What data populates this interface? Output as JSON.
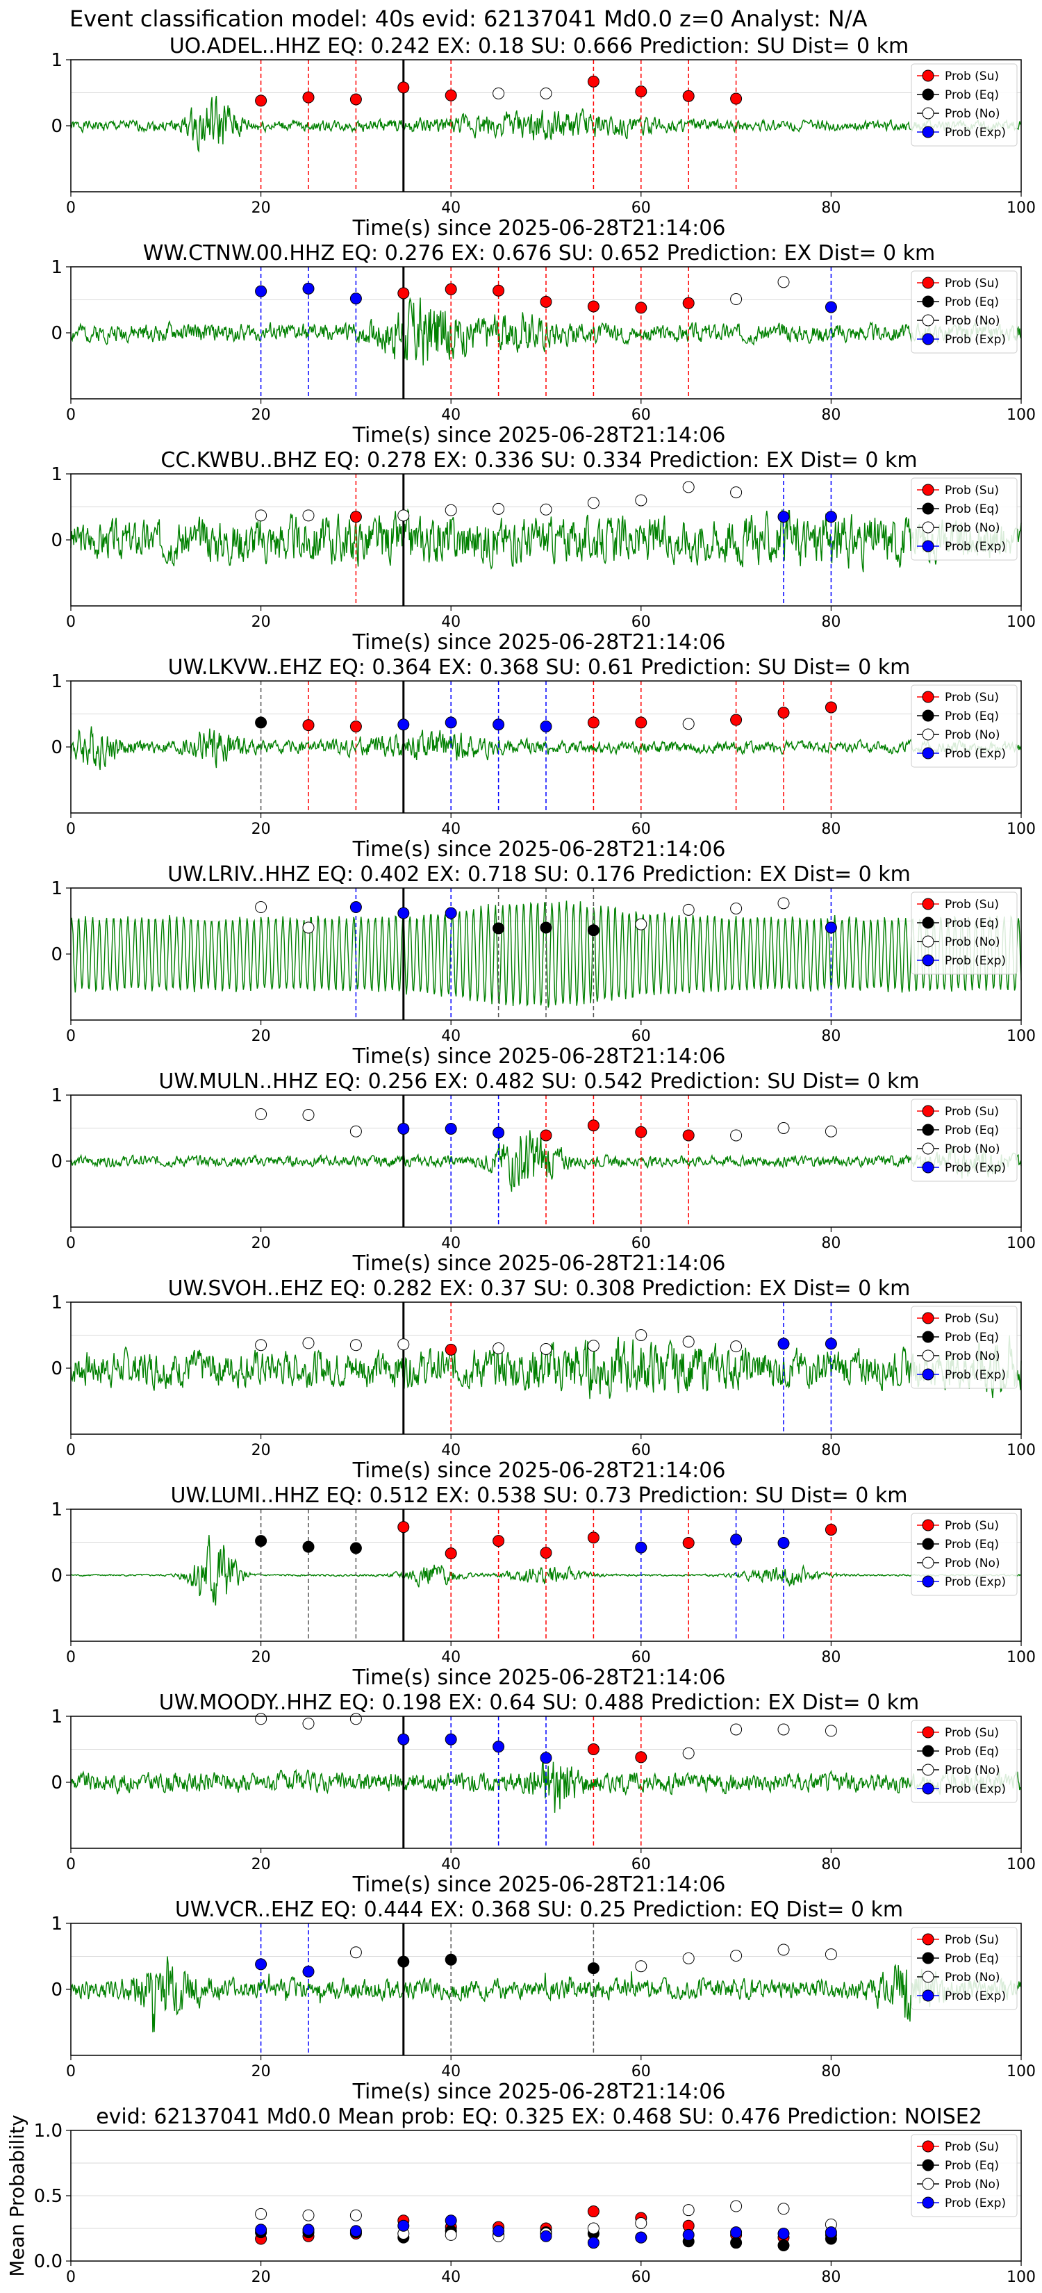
{
  "figure": {
    "suptitle": "Event classification model: 40s evid: 62137041 Md0.0 z=0 Analyst: N/A",
    "xlabel": "Time(s) since 2025-06-28T21:14:06",
    "xticks": [
      0,
      20,
      40,
      60,
      80,
      100
    ],
    "xlim": [
      0,
      100
    ],
    "event_time_line": 35,
    "legend": [
      "Prob (Su)",
      "Prob (Eq)",
      "Prob (No)",
      "Prob (Exp)"
    ]
  },
  "colors": {
    "waveform": "#008000",
    "su": "#ff0000",
    "eq": "#000000",
    "no": "#ffffff",
    "exp": "#0000ff",
    "grid": "#d9d9d9"
  },
  "chart_data": [
    {
      "type": "line",
      "title": "UO.ADEL..HHZ   EQ: 0.242  EX: 0.18  SU: 0.666   Prediction: SU    Dist= 0 km",
      "yticks": [
        0,
        1
      ],
      "ylim": [
        -1,
        1
      ],
      "points": [
        {
          "t": 20,
          "cls": "su",
          "p": 0.38
        },
        {
          "t": 25,
          "cls": "su",
          "p": 0.43
        },
        {
          "t": 30,
          "cls": "su",
          "p": 0.4
        },
        {
          "t": 35,
          "cls": "su",
          "p": 0.58
        },
        {
          "t": 40,
          "cls": "su",
          "p": 0.46
        },
        {
          "t": 45,
          "cls": "no",
          "p": 0.49
        },
        {
          "t": 50,
          "cls": "no",
          "p": 0.49
        },
        {
          "t": 55,
          "cls": "su",
          "p": 0.67
        },
        {
          "t": 60,
          "cls": "su",
          "p": 0.52
        },
        {
          "t": 65,
          "cls": "su",
          "p": 0.45
        },
        {
          "t": 70,
          "cls": "su",
          "p": 0.41
        }
      ],
      "wave": {
        "base": 0.12,
        "seed": 1,
        "bursts": [
          {
            "c": 15,
            "w": 2.5,
            "a": 0.55
          },
          {
            "c": 50,
            "w": 10,
            "a": 0.22
          }
        ]
      }
    },
    {
      "type": "line",
      "title": "WW.CTNW.00.HHZ   EQ: 0.276  EX: 0.676  SU: 0.652   Prediction: EX    Dist= 0 km",
      "yticks": [
        0,
        1
      ],
      "ylim": [
        -1,
        1
      ],
      "points": [
        {
          "t": 20,
          "cls": "exp",
          "p": 0.63
        },
        {
          "t": 25,
          "cls": "exp",
          "p": 0.67
        },
        {
          "t": 30,
          "cls": "exp",
          "p": 0.52
        },
        {
          "t": 35,
          "cls": "su",
          "p": 0.6
        },
        {
          "t": 40,
          "cls": "su",
          "p": 0.66
        },
        {
          "t": 45,
          "cls": "su",
          "p": 0.64
        },
        {
          "t": 50,
          "cls": "su",
          "p": 0.47
        },
        {
          "t": 55,
          "cls": "su",
          "p": 0.4
        },
        {
          "t": 60,
          "cls": "su",
          "p": 0.38
        },
        {
          "t": 65,
          "cls": "su",
          "p": 0.45
        },
        {
          "t": 70,
          "cls": "no",
          "p": 0.51
        },
        {
          "t": 75,
          "cls": "no",
          "p": 0.77
        },
        {
          "t": 80,
          "cls": "exp",
          "p": 0.39
        }
      ],
      "wave": {
        "base": 0.2,
        "seed": 2,
        "bursts": [
          {
            "c": 37,
            "w": 4,
            "a": 0.65
          },
          {
            "c": 47,
            "w": 5,
            "a": 0.25
          }
        ]
      }
    },
    {
      "type": "line",
      "title": "CC.KWBU..BHZ   EQ: 0.278  EX: 0.336  SU: 0.334   Prediction: EX    Dist= 0 km",
      "yticks": [
        0,
        1
      ],
      "ylim": [
        -1,
        1
      ],
      "points": [
        {
          "t": 20,
          "cls": "no",
          "p": 0.37
        },
        {
          "t": 25,
          "cls": "no",
          "p": 0.37
        },
        {
          "t": 30,
          "cls": "su",
          "p": 0.35
        },
        {
          "t": 35,
          "cls": "no",
          "p": 0.37
        },
        {
          "t": 40,
          "cls": "no",
          "p": 0.45
        },
        {
          "t": 45,
          "cls": "no",
          "p": 0.47
        },
        {
          "t": 50,
          "cls": "no",
          "p": 0.46
        },
        {
          "t": 55,
          "cls": "no",
          "p": 0.56
        },
        {
          "t": 60,
          "cls": "no",
          "p": 0.6
        },
        {
          "t": 65,
          "cls": "no",
          "p": 0.8
        },
        {
          "t": 70,
          "cls": "no",
          "p": 0.72
        },
        {
          "t": 75,
          "cls": "exp",
          "p": 0.35
        },
        {
          "t": 80,
          "cls": "exp",
          "p": 0.35
        }
      ],
      "wave": {
        "base": 0.35,
        "seed": 3,
        "bursts": [
          {
            "c": 35,
            "w": 30,
            "a": 0.2
          },
          {
            "c": 80,
            "w": 15,
            "a": 0.2
          }
        ]
      }
    },
    {
      "type": "line",
      "title": "UW.LKVW..EHZ   EQ: 0.364  EX: 0.368  SU: 0.61   Prediction: SU    Dist= 0 km",
      "yticks": [
        0,
        1
      ],
      "ylim": [
        -1,
        1
      ],
      "points": [
        {
          "t": 20,
          "cls": "eq",
          "p": 0.37
        },
        {
          "t": 25,
          "cls": "su",
          "p": 0.33
        },
        {
          "t": 30,
          "cls": "su",
          "p": 0.31
        },
        {
          "t": 35,
          "cls": "exp",
          "p": 0.34
        },
        {
          "t": 40,
          "cls": "exp",
          "p": 0.37
        },
        {
          "t": 45,
          "cls": "exp",
          "p": 0.34
        },
        {
          "t": 50,
          "cls": "exp",
          "p": 0.31
        },
        {
          "t": 55,
          "cls": "su",
          "p": 0.37
        },
        {
          "t": 60,
          "cls": "su",
          "p": 0.37
        },
        {
          "t": 65,
          "cls": "no",
          "p": 0.35
        },
        {
          "t": 70,
          "cls": "su",
          "p": 0.41
        },
        {
          "t": 75,
          "cls": "su",
          "p": 0.52
        },
        {
          "t": 80,
          "cls": "su",
          "p": 0.6
        }
      ],
      "wave": {
        "base": 0.13,
        "seed": 4,
        "bursts": [
          {
            "c": 2,
            "w": 3,
            "a": 0.35
          },
          {
            "c": 15,
            "w": 3,
            "a": 0.3
          },
          {
            "c": 38,
            "w": 8,
            "a": 0.2
          }
        ]
      }
    },
    {
      "type": "line",
      "title": "UW.LRIV..HHZ   EQ: 0.402  EX: 0.718  SU: 0.176   Prediction: EX    Dist= 0 km",
      "yticks": [
        0,
        1
      ],
      "ylim": [
        -1,
        1
      ],
      "points": [
        {
          "t": 20,
          "cls": "no",
          "p": 0.71
        },
        {
          "t": 25,
          "cls": "no",
          "p": 0.4
        },
        {
          "t": 30,
          "cls": "exp",
          "p": 0.71
        },
        {
          "t": 35,
          "cls": "exp",
          "p": 0.62
        },
        {
          "t": 40,
          "cls": "exp",
          "p": 0.62
        },
        {
          "t": 45,
          "cls": "eq",
          "p": 0.39
        },
        {
          "t": 50,
          "cls": "eq",
          "p": 0.4
        },
        {
          "t": 55,
          "cls": "eq",
          "p": 0.36
        },
        {
          "t": 60,
          "cls": "no",
          "p": 0.45
        },
        {
          "t": 65,
          "cls": "no",
          "p": 0.67
        },
        {
          "t": 70,
          "cls": "no",
          "p": 0.69
        },
        {
          "t": 75,
          "cls": "no",
          "p": 0.77
        },
        {
          "t": 80,
          "cls": "exp",
          "p": 0.4
        }
      ],
      "wave": {
        "base": 0.55,
        "seed": 5,
        "smooth": true,
        "bursts": [
          {
            "c": 50,
            "w": 10,
            "a": 0.25
          }
        ]
      }
    },
    {
      "type": "line",
      "title": "UW.MULN..HHZ   EQ: 0.256  EX: 0.482  SU: 0.542   Prediction: SU    Dist= 0 km",
      "yticks": [
        0,
        1
      ],
      "ylim": [
        -1,
        1
      ],
      "points": [
        {
          "t": 20,
          "cls": "no",
          "p": 0.71
        },
        {
          "t": 25,
          "cls": "no",
          "p": 0.7
        },
        {
          "t": 30,
          "cls": "no",
          "p": 0.45
        },
        {
          "t": 35,
          "cls": "exp",
          "p": 0.49
        },
        {
          "t": 40,
          "cls": "exp",
          "p": 0.49
        },
        {
          "t": 45,
          "cls": "exp",
          "p": 0.43
        },
        {
          "t": 50,
          "cls": "su",
          "p": 0.39
        },
        {
          "t": 55,
          "cls": "su",
          "p": 0.54
        },
        {
          "t": 60,
          "cls": "su",
          "p": 0.44
        },
        {
          "t": 65,
          "cls": "su",
          "p": 0.39
        },
        {
          "t": 70,
          "cls": "no",
          "p": 0.39
        },
        {
          "t": 75,
          "cls": "no",
          "p": 0.5
        },
        {
          "t": 80,
          "cls": "no",
          "p": 0.45
        }
      ],
      "wave": {
        "base": 0.12,
        "seed": 6,
        "bursts": [
          {
            "c": 48,
            "w": 3,
            "a": 0.65
          },
          {
            "c": 95,
            "w": 4,
            "a": 0.25
          }
        ]
      }
    },
    {
      "type": "line",
      "title": "UW.SVOH..EHZ   EQ: 0.282  EX: 0.37  SU: 0.308   Prediction: EX    Dist= 0 km",
      "yticks": [
        0,
        1
      ],
      "ylim": [
        -1,
        1
      ],
      "points": [
        {
          "t": 20,
          "cls": "no",
          "p": 0.35
        },
        {
          "t": 25,
          "cls": "no",
          "p": 0.38
        },
        {
          "t": 30,
          "cls": "no",
          "p": 0.35
        },
        {
          "t": 35,
          "cls": "no",
          "p": 0.36
        },
        {
          "t": 40,
          "cls": "su",
          "p": 0.28
        },
        {
          "t": 45,
          "cls": "no",
          "p": 0.3
        },
        {
          "t": 50,
          "cls": "no",
          "p": 0.29
        },
        {
          "t": 55,
          "cls": "no",
          "p": 0.34
        },
        {
          "t": 60,
          "cls": "no",
          "p": 0.5
        },
        {
          "t": 65,
          "cls": "no",
          "p": 0.4
        },
        {
          "t": 70,
          "cls": "no",
          "p": 0.33
        },
        {
          "t": 75,
          "cls": "exp",
          "p": 0.37
        },
        {
          "t": 80,
          "cls": "exp",
          "p": 0.37
        }
      ],
      "wave": {
        "base": 0.4,
        "seed": 7,
        "bursts": [
          {
            "c": 57,
            "w": 10,
            "a": 0.25
          },
          {
            "c": 98,
            "w": 3,
            "a": 0.35
          }
        ]
      }
    },
    {
      "type": "line",
      "title": "UW.LUMI..HHZ   EQ: 0.512  EX: 0.538  SU: 0.73   Prediction: SU    Dist= 0 km",
      "yticks": [
        0,
        1
      ],
      "ylim": [
        -1,
        1
      ],
      "points": [
        {
          "t": 20,
          "cls": "eq",
          "p": 0.52
        },
        {
          "t": 25,
          "cls": "eq",
          "p": 0.43
        },
        {
          "t": 30,
          "cls": "eq",
          "p": 0.41
        },
        {
          "t": 35,
          "cls": "su",
          "p": 0.73
        },
        {
          "t": 40,
          "cls": "su",
          "p": 0.33
        },
        {
          "t": 45,
          "cls": "su",
          "p": 0.52
        },
        {
          "t": 50,
          "cls": "su",
          "p": 0.34
        },
        {
          "t": 55,
          "cls": "su",
          "p": 0.57
        },
        {
          "t": 60,
          "cls": "exp",
          "p": 0.42
        },
        {
          "t": 65,
          "cls": "su",
          "p": 0.49
        },
        {
          "t": 70,
          "cls": "exp",
          "p": 0.54
        },
        {
          "t": 75,
          "cls": "exp",
          "p": 0.49
        },
        {
          "t": 80,
          "cls": "su",
          "p": 0.69
        }
      ],
      "wave": {
        "base": 0.02,
        "seed": 8,
        "bursts": [
          {
            "c": 15,
            "w": 2.2,
            "a": 0.9
          },
          {
            "c": 38,
            "w": 3,
            "a": 0.25
          },
          {
            "c": 50,
            "w": 4,
            "a": 0.2
          },
          {
            "c": 75,
            "w": 4,
            "a": 0.2
          }
        ]
      }
    },
    {
      "type": "line",
      "title": "UW.MOODY..HHZ   EQ: 0.198  EX: 0.64  SU: 0.488   Prediction: EX    Dist= 0 km",
      "yticks": [
        0,
        1
      ],
      "ylim": [
        -1,
        1
      ],
      "points": [
        {
          "t": 20,
          "cls": "no",
          "p": 0.96
        },
        {
          "t": 25,
          "cls": "no",
          "p": 0.89
        },
        {
          "t": 30,
          "cls": "no",
          "p": 0.96
        },
        {
          "t": 35,
          "cls": "exp",
          "p": 0.65
        },
        {
          "t": 40,
          "cls": "exp",
          "p": 0.65
        },
        {
          "t": 45,
          "cls": "exp",
          "p": 0.54
        },
        {
          "t": 50,
          "cls": "exp",
          "p": 0.37
        },
        {
          "t": 55,
          "cls": "su",
          "p": 0.5
        },
        {
          "t": 60,
          "cls": "su",
          "p": 0.38
        },
        {
          "t": 65,
          "cls": "no",
          "p": 0.44
        },
        {
          "t": 70,
          "cls": "no",
          "p": 0.8
        },
        {
          "t": 75,
          "cls": "no",
          "p": 0.8
        },
        {
          "t": 80,
          "cls": "no",
          "p": 0.78
        }
      ],
      "wave": {
        "base": 0.22,
        "seed": 9,
        "bursts": [
          {
            "c": 51,
            "w": 2,
            "a": 0.6
          }
        ]
      }
    },
    {
      "type": "line",
      "title": "UW.VCR..EHZ   EQ: 0.444  EX: 0.368  SU: 0.25   Prediction: EQ    Dist= 0 km",
      "yticks": [
        0,
        1
      ],
      "ylim": [
        -1,
        1
      ],
      "points": [
        {
          "t": 20,
          "cls": "exp",
          "p": 0.38
        },
        {
          "t": 25,
          "cls": "exp",
          "p": 0.27
        },
        {
          "t": 30,
          "cls": "no",
          "p": 0.56
        },
        {
          "t": 35,
          "cls": "eq",
          "p": 0.42
        },
        {
          "t": 40,
          "cls": "eq",
          "p": 0.45
        },
        {
          "t": 55,
          "cls": "eq",
          "p": 0.32
        },
        {
          "t": 60,
          "cls": "no",
          "p": 0.35
        },
        {
          "t": 65,
          "cls": "no",
          "p": 0.47
        },
        {
          "t": 70,
          "cls": "no",
          "p": 0.51
        },
        {
          "t": 75,
          "cls": "no",
          "p": 0.6
        },
        {
          "t": 80,
          "cls": "no",
          "p": 0.53
        }
      ],
      "wave": {
        "base": 0.22,
        "seed": 10,
        "spiky": true,
        "bursts": [
          {
            "c": 10,
            "w": 3,
            "a": 0.5
          },
          {
            "c": 88,
            "w": 3,
            "a": 0.45
          }
        ]
      }
    },
    {
      "type": "scatter",
      "title": "evid: 62137041  Md0.0   Mean prob:   EQ: 0.325  EX: 0.468  SU: 0.476   Prediction: NOISE2",
      "ylabel": "Mean Probability",
      "yticks": [
        0.0,
        0.5,
        1.0
      ],
      "ylim": [
        0,
        1
      ],
      "x": [
        20,
        25,
        30,
        35,
        40,
        45,
        50,
        55,
        60,
        65,
        70,
        75,
        80
      ],
      "series": [
        {
          "name": "Prob (Su)",
          "cls": "su",
          "values": [
            0.17,
            0.19,
            0.21,
            0.31,
            0.26,
            0.26,
            0.25,
            0.38,
            0.33,
            0.27,
            0.2,
            0.18,
            0.2
          ]
        },
        {
          "name": "Prob (Eq)",
          "cls": "eq",
          "values": [
            0.22,
            0.22,
            0.22,
            0.18,
            0.23,
            0.2,
            0.22,
            0.21,
            0.18,
            0.15,
            0.14,
            0.12,
            0.17
          ]
        },
        {
          "name": "Prob (No)",
          "cls": "no",
          "values": [
            0.36,
            0.35,
            0.35,
            0.21,
            0.2,
            0.19,
            0.21,
            0.25,
            0.29,
            0.39,
            0.42,
            0.4,
            0.28
          ]
        },
        {
          "name": "Prob (Exp)",
          "cls": "exp",
          "values": [
            0.24,
            0.24,
            0.23,
            0.27,
            0.31,
            0.23,
            0.19,
            0.14,
            0.18,
            0.2,
            0.22,
            0.21,
            0.22
          ]
        }
      ]
    }
  ]
}
